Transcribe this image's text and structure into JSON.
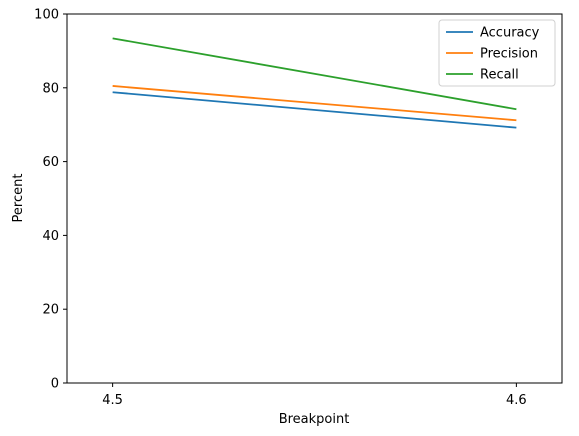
{
  "chart_data": {
    "type": "line",
    "title": "",
    "xlabel": "Breakpoint",
    "ylabel": "Percent",
    "x": [
      4.5,
      4.6
    ],
    "x_tick_labels": [
      "4.5",
      "4.6"
    ],
    "y_ticks": [
      0,
      20,
      40,
      60,
      80,
      100
    ],
    "y_tick_labels": [
      "0",
      "20",
      "40",
      "60",
      "80",
      "100"
    ],
    "ylim": [
      0,
      100
    ],
    "series": [
      {
        "name": "Accuracy",
        "values": [
          78.8,
          69.2
        ],
        "color": "#1f77b4"
      },
      {
        "name": "Precision",
        "values": [
          80.5,
          71.2
        ],
        "color": "#ff7f0e"
      },
      {
        "name": "Recall",
        "values": [
          93.4,
          74.2
        ],
        "color": "#2ca02c"
      }
    ],
    "legend_position": "top-right",
    "grid": false
  }
}
